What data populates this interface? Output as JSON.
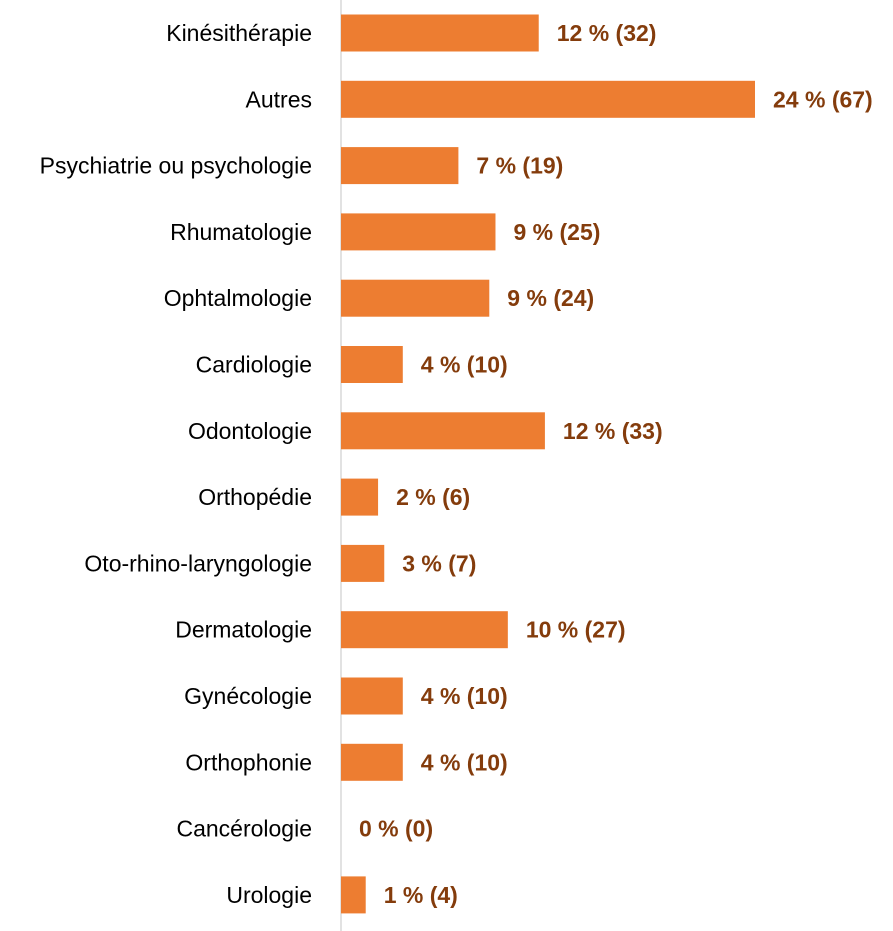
{
  "chart_data": {
    "type": "bar",
    "orientation": "horizontal",
    "title": "",
    "xlabel": "",
    "ylabel": "",
    "categories": [
      "Kinésithérapie",
      "Autres",
      "Psychiatrie ou psychologie",
      "Rhumatologie",
      "Ophtalmologie",
      "Cardiologie",
      "Odontologie",
      "Orthopédie",
      "Oto-rhino-laryngologie",
      "Dermatologie",
      "Gynécologie",
      "Orthophonie",
      "Cancérologie",
      "Urologie"
    ],
    "values": [
      12,
      24,
      7,
      9,
      9,
      4,
      12,
      2,
      3,
      10,
      4,
      4,
      0,
      1
    ],
    "counts": [
      32,
      67,
      19,
      25,
      24,
      10,
      33,
      6,
      7,
      27,
      10,
      10,
      0,
      4
    ],
    "data_labels": [
      "12 % (32)",
      "24 % (67)",
      "7 % (19)",
      "9 % (25)",
      "9 % (24)",
      "4 % (10)",
      "12 % (33)",
      "2 % (6)",
      "3 % (7)",
      "10 % (27)",
      "4 % (10)",
      "4 % (10)",
      "0 % (0)",
      "1 % (4)"
    ],
    "bar_value_key": "counts",
    "xlim": [
      0,
      67
    ],
    "grid": false,
    "legend": "none",
    "colors": {
      "bar": "#ED7D31",
      "data_label": "#843C0C",
      "axis": "#D9D9D9",
      "category_label": "#000000"
    }
  }
}
